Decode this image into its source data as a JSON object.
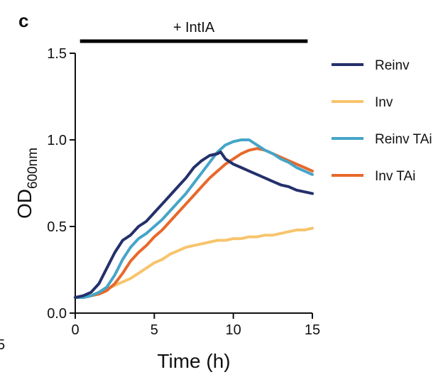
{
  "panel_label": "c",
  "stray_label": "5",
  "treatment": {
    "label": "+ IntIA"
  },
  "legend": {
    "items": [
      {
        "label": "Reinv",
        "color": "#24306b"
      },
      {
        "label": "Inv",
        "color": "#f7c46c"
      },
      {
        "label": "Reinv TAi",
        "color": "#45a5c8"
      },
      {
        "label": "Inv TAi",
        "color": "#e8682a"
      }
    ]
  },
  "chart_data": {
    "type": "line",
    "xlabel": "Time (h)",
    "ylabel_main": "OD",
    "ylabel_sub": "600nm",
    "xlim": [
      0,
      15
    ],
    "ylim": [
      0,
      1.5
    ],
    "xticks": [
      "0",
      "5",
      "10",
      "15"
    ],
    "yticks": [
      "0.0",
      "0.5",
      "1.0",
      "1.5"
    ],
    "grid": false,
    "legend_position": "right",
    "treatment_bar": {
      "label": "+ IntIA",
      "x_start": 0.3,
      "x_end": 14.7
    },
    "series": [
      {
        "name": "Reinv",
        "color": "#24306b",
        "x": [
          0,
          0.5,
          1,
          1.5,
          2,
          2.5,
          3,
          3.5,
          4,
          4.5,
          5,
          5.5,
          6,
          6.5,
          7,
          7.5,
          8,
          8.5,
          9,
          9.2,
          9.5,
          10,
          10.5,
          11,
          11.5,
          12,
          12.5,
          13,
          13.5,
          14,
          14.5,
          15
        ],
        "y": [
          0.09,
          0.1,
          0.12,
          0.17,
          0.26,
          0.35,
          0.42,
          0.45,
          0.5,
          0.53,
          0.58,
          0.63,
          0.68,
          0.73,
          0.78,
          0.84,
          0.88,
          0.91,
          0.92,
          0.93,
          0.89,
          0.86,
          0.84,
          0.82,
          0.8,
          0.78,
          0.76,
          0.74,
          0.73,
          0.71,
          0.7,
          0.69
        ]
      },
      {
        "name": "Inv",
        "color": "#f7c46c",
        "x": [
          0,
          0.5,
          1,
          1.5,
          2,
          2.5,
          3,
          3.5,
          4,
          4.5,
          5,
          5.5,
          6,
          6.5,
          7,
          7.5,
          8,
          8.5,
          9,
          9.5,
          10,
          10.5,
          11,
          11.5,
          12,
          12.5,
          13,
          13.5,
          14,
          14.5,
          15
        ],
        "y": [
          0.09,
          0.09,
          0.1,
          0.12,
          0.14,
          0.16,
          0.18,
          0.2,
          0.23,
          0.26,
          0.29,
          0.31,
          0.34,
          0.36,
          0.38,
          0.39,
          0.4,
          0.41,
          0.42,
          0.42,
          0.43,
          0.43,
          0.44,
          0.44,
          0.45,
          0.45,
          0.46,
          0.47,
          0.48,
          0.48,
          0.49
        ]
      },
      {
        "name": "Reinv TAi",
        "color": "#45a5c8",
        "x": [
          0,
          0.5,
          1,
          1.5,
          2,
          2.5,
          3,
          3.5,
          4,
          4.5,
          5,
          5.5,
          6,
          6.5,
          7,
          7.5,
          8,
          8.5,
          9,
          9.5,
          10,
          10.5,
          11,
          11.5,
          12,
          12.5,
          13,
          13.5,
          14,
          14.5,
          15
        ],
        "y": [
          0.09,
          0.09,
          0.1,
          0.12,
          0.15,
          0.22,
          0.31,
          0.38,
          0.43,
          0.46,
          0.5,
          0.54,
          0.59,
          0.64,
          0.69,
          0.75,
          0.81,
          0.87,
          0.93,
          0.97,
          0.99,
          1.0,
          1.0,
          0.97,
          0.94,
          0.92,
          0.89,
          0.87,
          0.84,
          0.82,
          0.8
        ]
      },
      {
        "name": "Inv TAi",
        "color": "#e8682a",
        "x": [
          0,
          0.5,
          1,
          1.5,
          2,
          2.5,
          3,
          3.5,
          4,
          4.5,
          5,
          5.5,
          6,
          6.5,
          7,
          7.5,
          8,
          8.5,
          9,
          9.5,
          10,
          10.5,
          11,
          11.5,
          12,
          12.5,
          13,
          13.5,
          14,
          14.5,
          15
        ],
        "y": [
          0.09,
          0.09,
          0.1,
          0.11,
          0.13,
          0.17,
          0.23,
          0.3,
          0.35,
          0.39,
          0.44,
          0.48,
          0.53,
          0.58,
          0.63,
          0.68,
          0.73,
          0.78,
          0.82,
          0.86,
          0.89,
          0.92,
          0.94,
          0.95,
          0.94,
          0.92,
          0.9,
          0.88,
          0.86,
          0.84,
          0.82
        ]
      }
    ]
  }
}
